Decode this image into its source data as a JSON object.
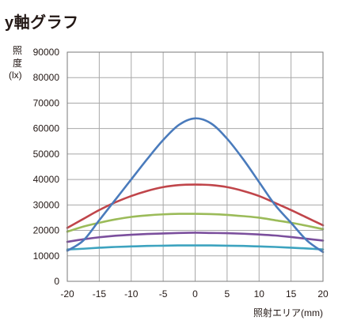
{
  "chart_data": {
    "type": "line",
    "title": "y軸グラフ",
    "ylabel_lines": [
      "照",
      "度",
      "(lx)"
    ],
    "xlabel": "照射エリア(mm)",
    "xlim": [
      -20,
      20
    ],
    "ylim": [
      0,
      90000
    ],
    "xticks": [
      -20,
      -15,
      -10,
      -5,
      0,
      5,
      10,
      15,
      20
    ],
    "yticks": [
      0,
      10000,
      20000,
      30000,
      40000,
      50000,
      60000,
      70000,
      80000,
      90000
    ],
    "grid": true,
    "x": [
      -20,
      -17.5,
      -15,
      -12.5,
      -10,
      -7.5,
      -5,
      -2.5,
      0,
      2.5,
      5,
      7.5,
      10,
      12.5,
      15,
      17.5,
      20
    ],
    "series": [
      {
        "color": "#4a7bbc",
        "values": [
          12000,
          16000,
          24000,
          32000,
          40000,
          48000,
          55500,
          61500,
          64000,
          62000,
          56000,
          48000,
          39000,
          30000,
          23000,
          16000,
          11500
        ]
      },
      {
        "color": "#c0454a",
        "values": [
          21000,
          24500,
          28000,
          31000,
          33500,
          35500,
          37000,
          37800,
          38000,
          37800,
          37000,
          35500,
          33500,
          30800,
          28000,
          25000,
          22000
        ]
      },
      {
        "color": "#9bbb59",
        "values": [
          19500,
          21500,
          23000,
          24300,
          25300,
          25900,
          26300,
          26500,
          26500,
          26400,
          26100,
          25600,
          25000,
          24000,
          23000,
          21800,
          20500
        ]
      },
      {
        "color": "#7b4f9d",
        "values": [
          15500,
          16500,
          17300,
          17900,
          18300,
          18600,
          18800,
          19000,
          19100,
          19000,
          18900,
          18700,
          18400,
          18000,
          17400,
          16700,
          16000
        ]
      },
      {
        "color": "#3da3bf",
        "values": [
          12500,
          12800,
          13200,
          13500,
          13700,
          13900,
          14000,
          14100,
          14100,
          14100,
          14000,
          13900,
          13700,
          13500,
          13200,
          12900,
          12500
        ]
      }
    ]
  }
}
